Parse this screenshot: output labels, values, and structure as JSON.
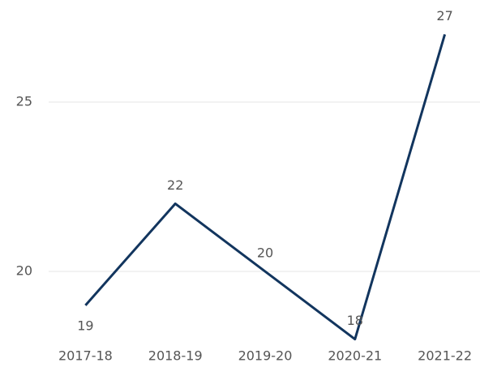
{
  "chart_data": {
    "type": "line",
    "categories": [
      "2017-18",
      "2018-19",
      "2019-20",
      "2020-21",
      "2021-22"
    ],
    "series": [
      {
        "color": "#12355e",
        "values": [
          19,
          22,
          20,
          18,
          27
        ]
      }
    ],
    "ylim": [
      17.8,
      27.5
    ],
    "yticks": [
      20,
      25
    ],
    "grid": true
  }
}
